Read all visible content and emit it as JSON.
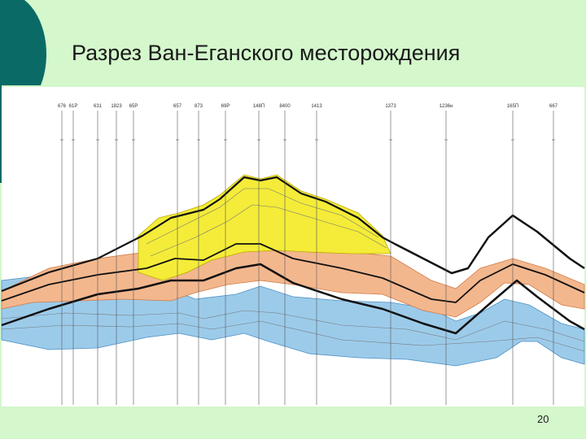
{
  "slide": {
    "title": "Разрез Ван-Еганского месторождения",
    "wells": [
      "676",
      "61Р",
      "631",
      "1823",
      "65Р",
      "657",
      "873",
      "69Р",
      "148П",
      "8400",
      "1413",
      "1373",
      "1236н",
      "165П",
      "667"
    ],
    "page_number": "20"
  }
}
